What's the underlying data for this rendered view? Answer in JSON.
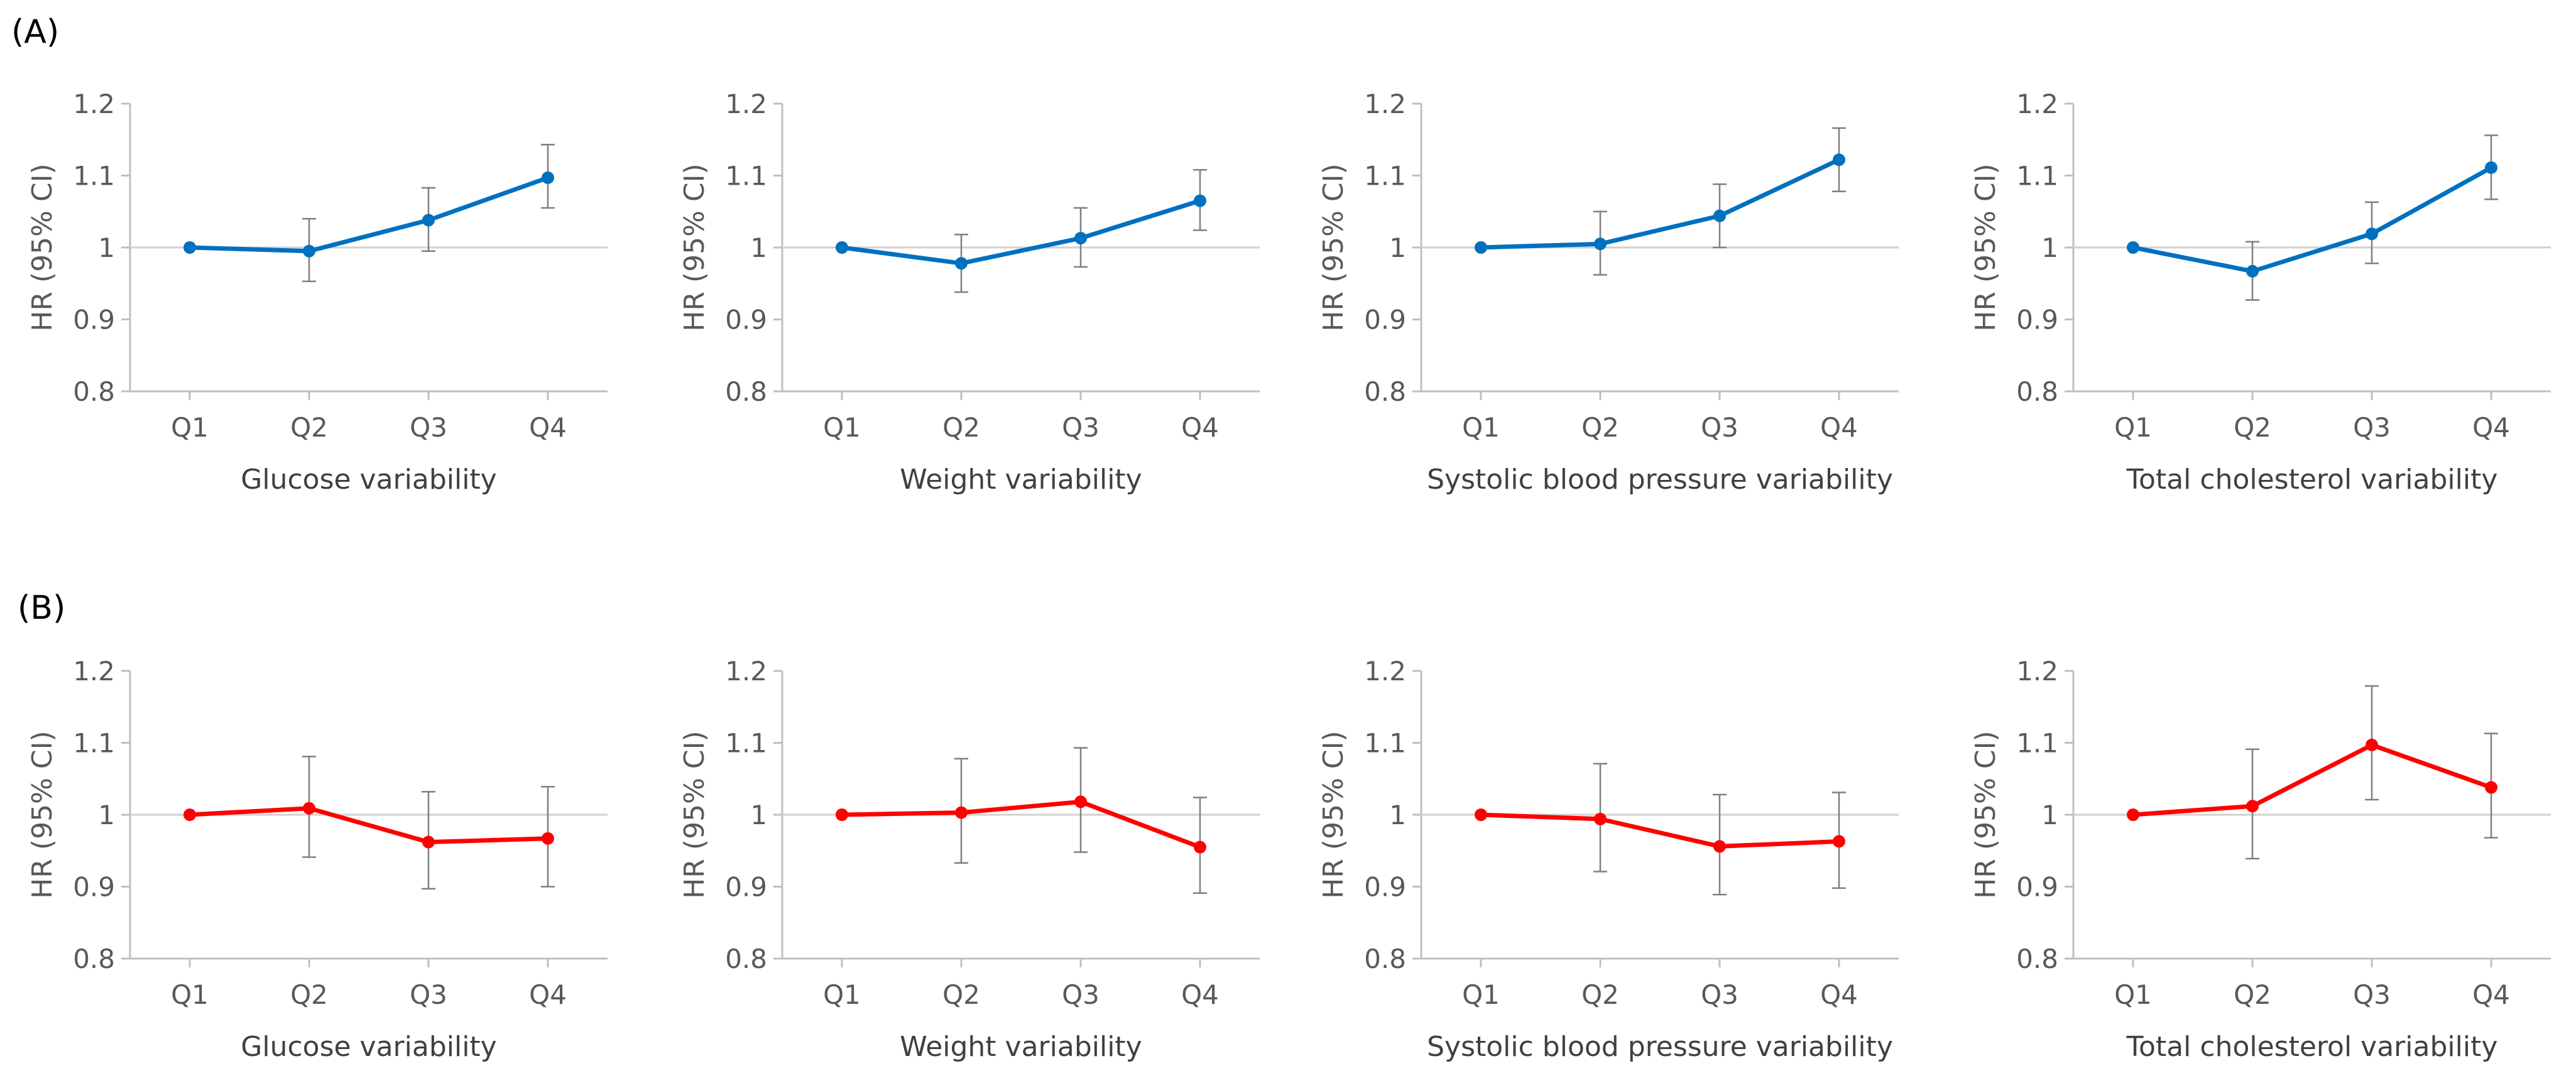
{
  "figure": {
    "panel_labels": [
      "(A)",
      "(B)"
    ]
  },
  "chart_data": [
    {
      "type": "line",
      "panel": "(A)",
      "color": "#0070C0",
      "title": "",
      "xlabel": "Glucose variability",
      "ylabel": "HR (95% CI)",
      "categories": [
        "Q1",
        "Q2",
        "Q3",
        "Q4"
      ],
      "values": [
        1.0,
        0.995,
        1.038,
        1.097
      ],
      "ci_low": [
        1.0,
        0.953,
        0.995,
        1.055
      ],
      "ci_high": [
        1.0,
        1.04,
        1.083,
        1.143
      ],
      "reference_line": 1.0,
      "ylim": [
        0.8,
        1.2
      ],
      "yticks": [
        0.8,
        0.9,
        1.0,
        1.1,
        1.2
      ]
    },
    {
      "type": "line",
      "panel": "(A)",
      "color": "#0070C0",
      "title": "",
      "xlabel": "Weight variability",
      "ylabel": "HR (95% CI)",
      "categories": [
        "Q1",
        "Q2",
        "Q3",
        "Q4"
      ],
      "values": [
        1.0,
        0.978,
        1.013,
        1.065
      ],
      "ci_low": [
        1.0,
        0.938,
        0.973,
        1.024
      ],
      "ci_high": [
        1.0,
        1.018,
        1.055,
        1.108
      ],
      "reference_line": 1.0,
      "ylim": [
        0.8,
        1.2
      ],
      "yticks": [
        0.8,
        0.9,
        1.0,
        1.1,
        1.2
      ]
    },
    {
      "type": "line",
      "panel": "(A)",
      "color": "#0070C0",
      "title": "",
      "xlabel": "Systolic blood pressure variability",
      "ylabel": "HR (95% CI)",
      "categories": [
        "Q1",
        "Q2",
        "Q3",
        "Q4"
      ],
      "values": [
        1.0,
        1.005,
        1.044,
        1.122
      ],
      "ci_low": [
        1.0,
        0.962,
        1.0,
        1.078
      ],
      "ci_high": [
        1.0,
        1.05,
        1.088,
        1.166
      ],
      "reference_line": 1.0,
      "ylim": [
        0.8,
        1.2
      ],
      "yticks": [
        0.8,
        0.9,
        1.0,
        1.1,
        1.2
      ]
    },
    {
      "type": "line",
      "panel": "(A)",
      "color": "#0070C0",
      "title": "",
      "xlabel": "Total cholesterol variability",
      "ylabel": "HR (95% CI)",
      "categories": [
        "Q1",
        "Q2",
        "Q3",
        "Q4"
      ],
      "values": [
        1.0,
        0.967,
        1.019,
        1.111
      ],
      "ci_low": [
        1.0,
        0.927,
        0.978,
        1.067
      ],
      "ci_high": [
        1.0,
        1.008,
        1.063,
        1.156
      ],
      "reference_line": 1.0,
      "ylim": [
        0.8,
        1.2
      ],
      "yticks": [
        0.8,
        0.9,
        1.0,
        1.1,
        1.2
      ]
    },
    {
      "type": "line",
      "panel": "(B)",
      "color": "#FF0000",
      "title": "",
      "xlabel": "Glucose variability",
      "ylabel": "HR (95% CI)",
      "categories": [
        "Q1",
        "Q2",
        "Q3",
        "Q4"
      ],
      "values": [
        1.0,
        1.009,
        0.962,
        0.967
      ],
      "ci_low": [
        1.0,
        0.941,
        0.897,
        0.9
      ],
      "ci_high": [
        1.0,
        1.081,
        1.032,
        1.039
      ],
      "reference_line": 1.0,
      "ylim": [
        0.8,
        1.2
      ],
      "yticks": [
        0.8,
        0.9,
        1.0,
        1.1,
        1.2
      ]
    },
    {
      "type": "line",
      "panel": "(B)",
      "color": "#FF0000",
      "title": "",
      "xlabel": "Weight variability",
      "ylabel": "HR (95% CI)",
      "categories": [
        "Q1",
        "Q2",
        "Q3",
        "Q4"
      ],
      "values": [
        1.0,
        1.003,
        1.018,
        0.955
      ],
      "ci_low": [
        1.0,
        0.933,
        0.948,
        0.891
      ],
      "ci_high": [
        1.0,
        1.078,
        1.093,
        1.024
      ],
      "reference_line": 1.0,
      "ylim": [
        0.8,
        1.2
      ],
      "yticks": [
        0.8,
        0.9,
        1.0,
        1.1,
        1.2
      ]
    },
    {
      "type": "line",
      "panel": "(B)",
      "color": "#FF0000",
      "title": "",
      "xlabel": "Systolic blood pressure variability",
      "ylabel": "HR (95% CI)",
      "categories": [
        "Q1",
        "Q2",
        "Q3",
        "Q4"
      ],
      "values": [
        1.0,
        0.994,
        0.956,
        0.963
      ],
      "ci_low": [
        1.0,
        0.921,
        0.889,
        0.898
      ],
      "ci_high": [
        1.0,
        1.071,
        1.028,
        1.031
      ],
      "reference_line": 1.0,
      "ylim": [
        0.8,
        1.2
      ],
      "yticks": [
        0.8,
        0.9,
        1.0,
        1.1,
        1.2
      ]
    },
    {
      "type": "line",
      "panel": "(B)",
      "color": "#FF0000",
      "title": "",
      "xlabel": "Total cholesterol variability",
      "ylabel": "HR (95% CI)",
      "categories": [
        "Q1",
        "Q2",
        "Q3",
        "Q4"
      ],
      "values": [
        1.0,
        1.012,
        1.097,
        1.038
      ],
      "ci_low": [
        1.0,
        0.939,
        1.021,
        0.968
      ],
      "ci_high": [
        1.0,
        1.091,
        1.179,
        1.113
      ],
      "reference_line": 1.0,
      "ylim": [
        0.8,
        1.2
      ],
      "yticks": [
        0.8,
        0.9,
        1.0,
        1.1,
        1.2
      ]
    }
  ]
}
